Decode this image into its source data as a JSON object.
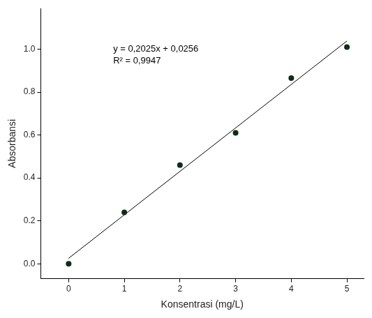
{
  "chart_data": {
    "type": "scatter",
    "x_label": "Konsentrasi (mg/L)",
    "y_label": "Absorbansi",
    "annotations": [
      "y = 0,2025x + 0,0256",
      "R² = 0,9947"
    ],
    "series": [
      {
        "type": "scatter",
        "color": "#0f2d14",
        "marker": "circle",
        "x": [
          0,
          1,
          2,
          3,
          4,
          5
        ],
        "values": [
          0.0,
          0.24,
          0.46,
          0.61,
          0.865,
          1.01
        ]
      },
      {
        "type": "line",
        "color": "#000000",
        "line_style": "solid",
        "x": [
          0,
          5
        ],
        "values": [
          0.0256,
          1.038
        ]
      }
    ],
    "xlim": [
      -0.5,
      5.3
    ],
    "xticks": [
      0,
      1,
      2,
      3,
      4,
      5
    ],
    "ylim": [
      -0.07,
      1.19
    ],
    "yticks": [
      {
        "value": 0,
        "label": "0.0"
      },
      0.2,
      0.4,
      0.6,
      0.8,
      {
        "value": 1,
        "label": "1.0"
      }
    ],
    "grid": false
  }
}
